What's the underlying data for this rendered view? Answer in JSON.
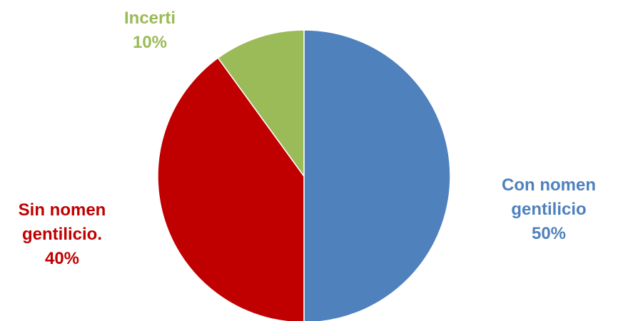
{
  "chart_data": {
    "type": "pie",
    "title": "",
    "slices": [
      {
        "name": "Con nomen gentilicio",
        "label_lines": [
          "Con nomen",
          "gentilicio"
        ],
        "value": 50,
        "value_label": "50%",
        "color": "#4F81BD"
      },
      {
        "name": "Sin nomen gentilicio.",
        "label_lines": [
          "Sin nomen",
          "gentilicio."
        ],
        "value": 40,
        "value_label": "40%",
        "color": "#C00000"
      },
      {
        "name": "Incerti",
        "label_lines": [
          "Incerti"
        ],
        "value": 10,
        "value_label": "10%",
        "color": "#9BBB59"
      }
    ],
    "start_angle_deg": 0,
    "direction": "clockwise",
    "legend": "none"
  }
}
